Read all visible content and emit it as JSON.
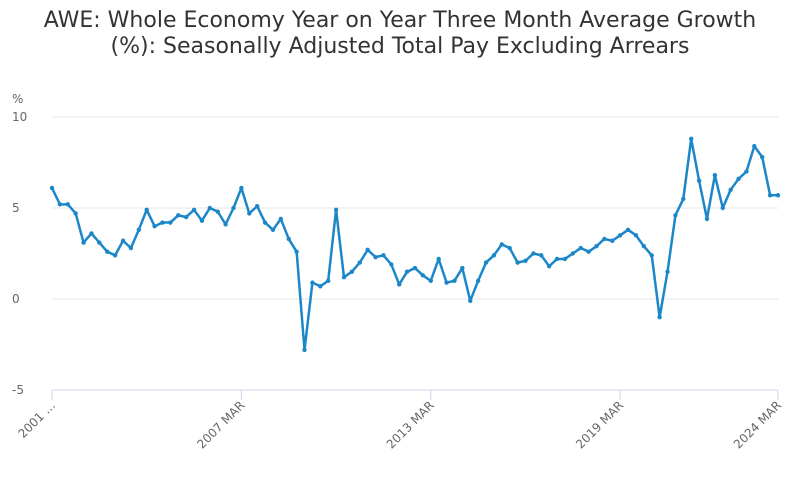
{
  "chart_data": {
    "type": "line",
    "title": "AWE: Whole Economy Year on Year Three Month Average Growth (%): Seasonally Adjusted Total Pay Excluding Arrears",
    "y_label": "%",
    "categories": [
      "2001 …",
      null,
      null,
      null,
      null,
      null,
      null,
      null,
      null,
      null,
      null,
      null,
      null,
      null,
      null,
      null,
      null,
      null,
      null,
      null,
      null,
      null,
      null,
      null,
      "2007 MAR",
      null,
      null,
      null,
      null,
      null,
      null,
      null,
      null,
      null,
      null,
      null,
      null,
      null,
      null,
      null,
      null,
      null,
      null,
      null,
      null,
      null,
      null,
      null,
      "2013 MAR",
      null,
      null,
      null,
      null,
      null,
      null,
      null,
      null,
      null,
      null,
      null,
      null,
      null,
      null,
      null,
      null,
      null,
      null,
      null,
      null,
      null,
      null,
      null,
      "2019 MAR",
      null,
      null,
      null,
      null,
      null,
      null,
      null,
      null,
      null,
      null,
      null,
      null,
      null,
      null,
      null,
      null,
      null,
      null,
      null,
      "2024 MAR"
    ],
    "values": [
      6.1,
      5.2,
      5.2,
      4.7,
      3.1,
      3.6,
      3.1,
      2.6,
      2.4,
      3.2,
      2.8,
      3.8,
      4.9,
      4.0,
      4.2,
      4.2,
      4.6,
      4.5,
      4.9,
      4.3,
      5.0,
      4.8,
      4.1,
      5.0,
      6.1,
      4.7,
      5.1,
      4.2,
      3.8,
      4.4,
      3.3,
      2.6,
      -2.8,
      0.9,
      0.7,
      1.0,
      4.9,
      1.2,
      1.5,
      2.0,
      2.7,
      2.3,
      2.4,
      1.9,
      0.8,
      1.5,
      1.7,
      1.3,
      1.0,
      2.2,
      0.9,
      1.0,
      1.7,
      -0.1,
      1.0,
      2.0,
      2.4,
      3.0,
      2.8,
      2.0,
      2.1,
      2.5,
      2.4,
      1.8,
      2.2,
      2.2,
      2.5,
      2.8,
      2.6,
      2.9,
      3.3,
      3.2,
      3.5,
      3.8,
      3.5,
      2.9,
      2.4,
      -1.0,
      1.5,
      4.6,
      5.5,
      8.8,
      6.5,
      4.4,
      6.8,
      5.0,
      6.0,
      6.6,
      7.0,
      8.4,
      7.8,
      5.7,
      5.7
    ],
    "color": "#1b87c9",
    "ylim": [
      -5,
      10
    ],
    "yticks": [
      -5,
      0,
      5,
      10
    ],
    "grid": true
  }
}
